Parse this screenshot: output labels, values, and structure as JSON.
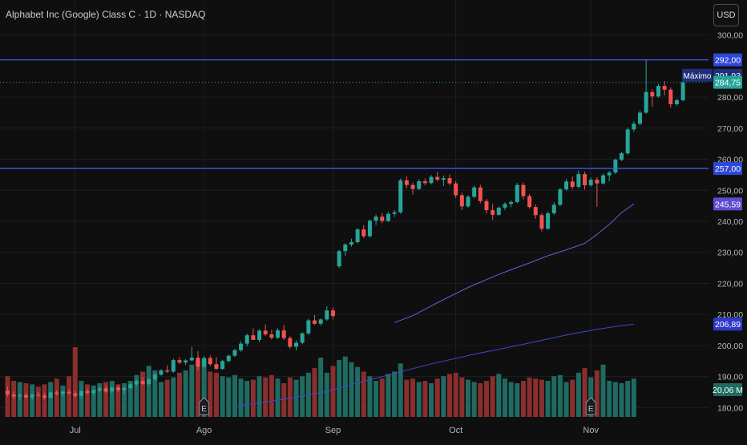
{
  "header": {
    "title": "Alphabet Inc (Google) Class C · 1D · NASDAQ",
    "currency_button": "USD"
  },
  "colors": {
    "background": "#0f0f0f",
    "grid": "#1d1f24",
    "up": "#26a69a",
    "down": "#ef5350",
    "up_volume": "#1f6b62",
    "down_volume": "#8a2e2e",
    "hline": "#3f5bff",
    "ma_fast": "#6a5cd6",
    "ma_slow": "#3f47d0",
    "text": "#b2b5be"
  },
  "chart_data": {
    "type": "candlestick",
    "title": "Alphabet Inc (Google) Class C · 1D · NASDAQ",
    "xlabel": "",
    "ylabel": "",
    "currency": "USD",
    "ylim": [
      177,
      303
    ],
    "y_ticks": [
      "300,00",
      "280,00",
      "270,00",
      "260,00",
      "250,00",
      "240,00",
      "230,00",
      "220,00",
      "210,00",
      "200,00",
      "190,00",
      "180,00"
    ],
    "x_labels": [
      {
        "label": "Jul",
        "index": 11
      },
      {
        "label": "Ago",
        "index": 32
      },
      {
        "label": "Sep",
        "index": 53
      },
      {
        "label": "Oct",
        "index": 73
      },
      {
        "label": "Nov",
        "index": 95
      }
    ],
    "candles": [
      [
        185.5,
        186.8,
        183.6,
        184.2
      ],
      [
        184.2,
        185.2,
        182.8,
        183.6
      ],
      [
        183.6,
        184.6,
        182.5,
        184.0
      ],
      [
        184.0,
        184.8,
        182.9,
        183.3
      ],
      [
        183.3,
        184.6,
        182.4,
        184.2
      ],
      [
        184.2,
        185.0,
        183.4,
        183.9
      ],
      [
        183.9,
        184.8,
        182.6,
        183.2
      ],
      [
        183.2,
        185.2,
        182.9,
        184.9
      ],
      [
        184.9,
        185.6,
        183.8,
        184.4
      ],
      [
        184.4,
        185.5,
        183.6,
        185.1
      ],
      [
        185.1,
        186.0,
        184.1,
        184.6
      ],
      [
        184.6,
        185.4,
        183.2,
        183.8
      ],
      [
        183.8,
        185.6,
        183.1,
        185.3
      ],
      [
        185.3,
        186.2,
        184.2,
        184.7
      ],
      [
        184.7,
        185.8,
        183.9,
        185.6
      ],
      [
        185.6,
        186.8,
        185.0,
        186.2
      ],
      [
        186.2,
        187.0,
        184.8,
        185.2
      ],
      [
        185.2,
        186.8,
        184.6,
        186.5
      ],
      [
        186.5,
        187.2,
        184.9,
        185.6
      ],
      [
        185.6,
        186.7,
        184.4,
        186.3
      ],
      [
        186.3,
        187.9,
        185.9,
        187.5
      ],
      [
        187.5,
        189.0,
        187.0,
        188.6
      ],
      [
        188.6,
        189.8,
        187.2,
        187.6
      ],
      [
        187.6,
        189.4,
        187.1,
        189.1
      ],
      [
        189.1,
        191.0,
        188.7,
        190.6
      ],
      [
        190.6,
        192.4,
        190.3,
        192.0
      ],
      [
        192.0,
        193.6,
        191.1,
        191.6
      ],
      [
        191.6,
        195.8,
        191.2,
        195.3
      ],
      [
        195.3,
        196.2,
        194.0,
        194.5
      ],
      [
        194.5,
        195.6,
        193.7,
        195.2
      ],
      [
        195.2,
        199.6,
        194.9,
        196.1
      ],
      [
        196.1,
        198.2,
        192.0,
        193.2
      ],
      [
        193.2,
        196.5,
        192.8,
        196.0
      ],
      [
        196.0,
        196.8,
        193.4,
        194.0
      ],
      [
        194.0,
        196.2,
        192.1,
        192.5
      ],
      [
        192.5,
        195.4,
        192.1,
        195.0
      ],
      [
        195.0,
        197.1,
        194.6,
        196.7
      ],
      [
        196.7,
        198.9,
        196.3,
        198.5
      ],
      [
        198.5,
        201.4,
        198.0,
        200.6
      ],
      [
        200.6,
        203.8,
        199.8,
        203.3
      ],
      [
        203.3,
        205.5,
        202.6,
        201.8
      ],
      [
        201.8,
        205.2,
        201.1,
        204.8
      ],
      [
        204.8,
        206.8,
        203.0,
        203.6
      ],
      [
        203.6,
        205.0,
        202.0,
        202.5
      ],
      [
        202.5,
        205.6,
        202.1,
        204.9
      ],
      [
        204.9,
        206.6,
        201.8,
        202.4
      ],
      [
        202.4,
        203.0,
        199.0,
        199.6
      ],
      [
        199.6,
        201.6,
        198.4,
        200.9
      ],
      [
        200.9,
        204.3,
        200.4,
        203.9
      ],
      [
        203.9,
        208.6,
        203.4,
        208.1
      ],
      [
        208.1,
        209.8,
        206.6,
        207.0
      ],
      [
        207.0,
        208.8,
        206.4,
        208.4
      ],
      [
        208.4,
        212.6,
        208.0,
        211.3
      ],
      [
        211.3,
        212.2,
        208.4,
        209.5
      ],
      [
        225.5,
        230.8,
        225.0,
        230.4
      ],
      [
        230.4,
        233.0,
        228.8,
        232.5
      ],
      [
        232.5,
        234.4,
        231.8,
        233.3
      ],
      [
        233.3,
        237.8,
        232.9,
        237.4
      ],
      [
        237.4,
        238.8,
        234.6,
        235.2
      ],
      [
        235.2,
        240.6,
        234.8,
        240.2
      ],
      [
        240.2,
        242.2,
        238.8,
        241.5
      ],
      [
        241.5,
        242.7,
        239.4,
        240.1
      ],
      [
        240.1,
        243.0,
        239.7,
        242.4
      ],
      [
        242.4,
        243.6,
        241.4,
        242.9
      ],
      [
        242.9,
        253.8,
        242.4,
        253.2
      ],
      [
        253.2,
        254.5,
        250.6,
        251.7
      ],
      [
        251.7,
        252.4,
        248.6,
        250.4
      ],
      [
        250.4,
        253.6,
        250.1,
        252.9
      ],
      [
        252.9,
        253.8,
        251.6,
        252.3
      ],
      [
        252.3,
        254.9,
        251.9,
        254.3
      ],
      [
        254.3,
        255.9,
        252.8,
        253.4
      ],
      [
        253.4,
        254.8,
        251.4,
        253.9
      ],
      [
        253.9,
        255.1,
        251.6,
        252.2
      ],
      [
        252.2,
        253.0,
        247.5,
        248.4
      ],
      [
        248.4,
        249.2,
        243.6,
        244.8
      ],
      [
        244.8,
        248.4,
        244.4,
        247.9
      ],
      [
        247.9,
        251.5,
        247.4,
        250.9
      ],
      [
        250.9,
        251.8,
        245.8,
        246.5
      ],
      [
        246.5,
        247.2,
        242.5,
        243.6
      ],
      [
        243.6,
        245.6,
        240.5,
        242.1
      ],
      [
        242.1,
        244.8,
        241.7,
        244.4
      ],
      [
        244.4,
        246.1,
        243.6,
        245.6
      ],
      [
        245.6,
        246.8,
        244.5,
        246.2
      ],
      [
        246.2,
        252.4,
        245.8,
        251.7
      ],
      [
        251.7,
        252.5,
        247.1,
        248.1
      ],
      [
        248.1,
        248.8,
        244.1,
        244.6
      ],
      [
        244.6,
        245.4,
        240.8,
        242.0
      ],
      [
        242.0,
        242.6,
        236.8,
        237.6
      ],
      [
        237.6,
        243.2,
        237.2,
        242.6
      ],
      [
        242.6,
        246.2,
        242.1,
        245.3
      ],
      [
        245.3,
        250.8,
        244.9,
        250.3
      ],
      [
        250.3,
        253.6,
        249.8,
        252.8
      ],
      [
        252.8,
        254.4,
        250.3,
        251.1
      ],
      [
        251.1,
        256.3,
        250.6,
        255.2
      ],
      [
        255.2,
        256.0,
        250.2,
        251.6
      ],
      [
        251.6,
        254.1,
        251.1,
        253.4
      ],
      [
        253.4,
        254.2,
        244.7,
        252.2
      ],
      [
        252.2,
        255.4,
        251.8,
        254.8
      ],
      [
        254.8,
        256.2,
        252.9,
        255.7
      ],
      [
        255.7,
        260.2,
        255.2,
        259.8
      ],
      [
        259.8,
        262.3,
        259.4,
        261.9
      ],
      [
        261.9,
        270.2,
        261.4,
        269.6
      ],
      [
        269.6,
        272.2,
        268.8,
        271.4
      ],
      [
        271.4,
        275.7,
        270.9,
        275.0
      ],
      [
        275.0,
        291.9,
        274.6,
        281.6
      ],
      [
        281.6,
        282.5,
        276.9,
        280.2
      ],
      [
        280.2,
        284.3,
        279.8,
        283.6
      ],
      [
        283.6,
        285.2,
        280.5,
        282.4
      ],
      [
        282.4,
        283.1,
        276.6,
        277.7
      ],
      [
        277.7,
        279.5,
        277.2,
        279.0
      ],
      [
        279.0,
        285.5,
        278.6,
        284.75
      ]
    ],
    "volume": {
      "max_label": "20,06 M",
      "bars": [
        35,
        31,
        30,
        29,
        28,
        26,
        28,
        30,
        33,
        27,
        35,
        60,
        31,
        28,
        27,
        29,
        30,
        31,
        28,
        29,
        31,
        36,
        39,
        44,
        40,
        30,
        32,
        34,
        38,
        40,
        45,
        48,
        50,
        39,
        38,
        35,
        34,
        36,
        33,
        31,
        32,
        35,
        34,
        36,
        33,
        29,
        34,
        32,
        35,
        38,
        42,
        51,
        38,
        44,
        49,
        52,
        47,
        43,
        39,
        35,
        31,
        33,
        37,
        39,
        46,
        32,
        33,
        30,
        31,
        29,
        33,
        35,
        37,
        38,
        34,
        32,
        30,
        29,
        31,
        35,
        37,
        33,
        30,
        29,
        31,
        34,
        33,
        32,
        31,
        35,
        36,
        30,
        32,
        38,
        42,
        34,
        40,
        45,
        31,
        30,
        29,
        31,
        33
      ]
    },
    "ma_fast": [
      [
        63,
        207.4
      ],
      [
        66,
        209.6
      ],
      [
        70,
        213.8
      ],
      [
        75,
        218.7
      ],
      [
        80,
        222.9
      ],
      [
        85,
        226.6
      ],
      [
        88,
        228.9
      ],
      [
        91,
        230.8
      ],
      [
        94,
        232.9
      ],
      [
        96,
        235.8
      ],
      [
        98,
        239.0
      ],
      [
        100,
        242.8
      ],
      [
        102,
        245.59
      ]
    ],
    "ma_slow": [
      [
        37,
        180.4
      ],
      [
        42,
        181.8
      ],
      [
        47,
        183.4
      ],
      [
        52,
        185.2
      ],
      [
        56,
        187.4
      ],
      [
        60,
        189.5
      ],
      [
        64,
        191.5
      ],
      [
        68,
        193.6
      ],
      [
        72,
        195.4
      ],
      [
        76,
        197.2
      ],
      [
        80,
        198.8
      ],
      [
        84,
        200.4
      ],
      [
        88,
        202.1
      ],
      [
        92,
        203.8
      ],
      [
        96,
        205.2
      ],
      [
        100,
        206.4
      ],
      [
        102,
        206.89
      ]
    ],
    "hlines": [
      {
        "value": 292.0,
        "label": "292,00"
      },
      {
        "value": 257.0,
        "label": "257,00"
      }
    ],
    "annotations": {
      "max_label": "Máximo",
      "max_value": "291,93",
      "last_price": "284,75",
      "last_price_value": 284.75,
      "ma_fast_value": "245,59",
      "ma_slow_value": "206,89",
      "earnings_marker": "E",
      "earnings_indices": [
        32,
        95
      ]
    }
  }
}
